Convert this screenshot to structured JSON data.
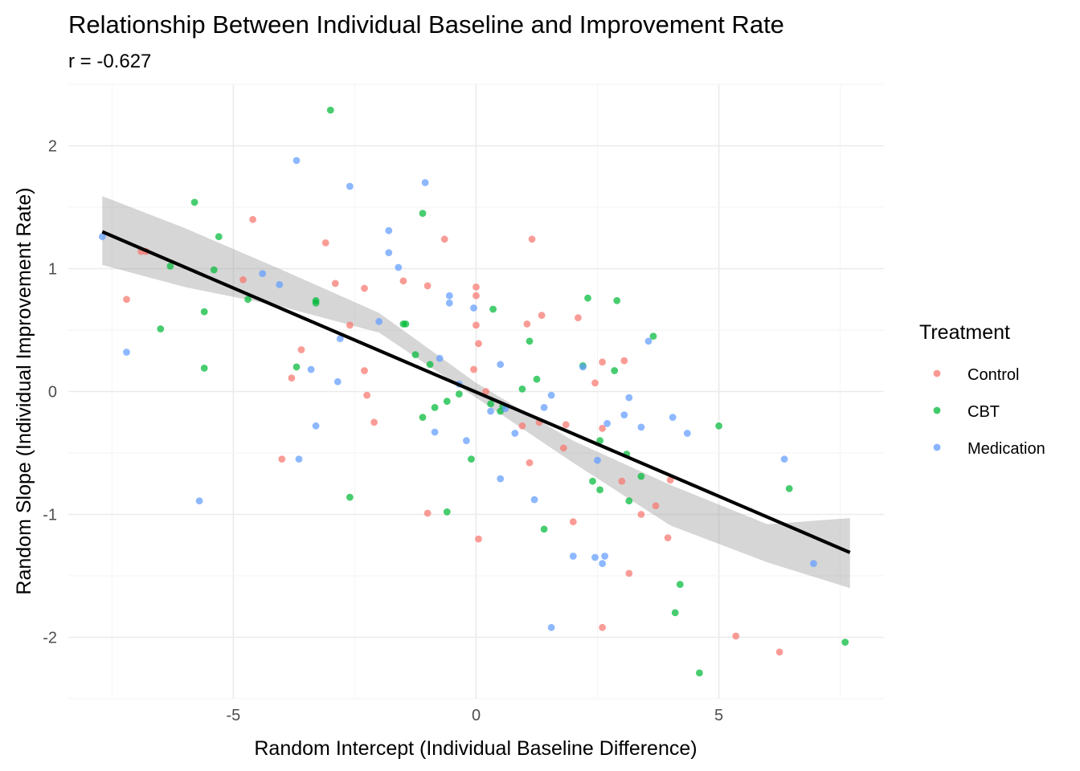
{
  "chart_data": {
    "type": "scatter",
    "title": "Relationship Between Individual Baseline and Improvement Rate",
    "subtitle": "r = -0.627",
    "xlabel": "Random Intercept (Individual Baseline Difference)",
    "ylabel": "Random Slope (Individual Improvement Rate)",
    "xlim": [
      -8.4,
      8.4
    ],
    "ylim": [
      -2.5,
      2.5
    ],
    "x_ticks": [
      -5,
      0,
      5
    ],
    "y_ticks": [
      -2,
      -1,
      0,
      1,
      2
    ],
    "x_tick_labels": [
      "-5",
      "0",
      "5"
    ],
    "y_tick_labels": [
      "-2",
      "-1",
      "0",
      "1",
      "2"
    ],
    "grid": true,
    "legend": {
      "title": "Treatment",
      "position": "right"
    },
    "series": [
      {
        "name": "Control",
        "color": "#F8766D",
        "points": [
          [
            -7.2,
            0.75
          ],
          [
            -6.9,
            1.14
          ],
          [
            -6.8,
            1.14
          ],
          [
            -4.6,
            1.4
          ],
          [
            -4.8,
            0.91
          ],
          [
            -3.1,
            1.21
          ],
          [
            -2.9,
            0.88
          ],
          [
            -3.6,
            0.34
          ],
          [
            -3.8,
            0.11
          ],
          [
            -2.6,
            0.54
          ],
          [
            -2.3,
            0.17
          ],
          [
            -2.25,
            -0.03
          ],
          [
            -2.1,
            -0.25
          ],
          [
            -2.3,
            0.84
          ],
          [
            -1.5,
            0.9
          ],
          [
            -1.0,
            0.86
          ],
          [
            -0.65,
            1.24
          ],
          [
            0.0,
            0.85
          ],
          [
            0.0,
            0.78
          ],
          [
            0.0,
            0.54
          ],
          [
            0.05,
            0.39
          ],
          [
            -0.05,
            0.18
          ],
          [
            0.2,
            0.0
          ],
          [
            1.05,
            0.55
          ],
          [
            1.35,
            0.62
          ],
          [
            1.15,
            1.24
          ],
          [
            2.1,
            0.6
          ],
          [
            2.6,
            0.24
          ],
          [
            2.45,
            0.07
          ],
          [
            3.05,
            0.25
          ],
          [
            1.3,
            -0.25
          ],
          [
            0.95,
            -0.28
          ],
          [
            1.85,
            -0.27
          ],
          [
            1.8,
            -0.46
          ],
          [
            2.6,
            -0.3
          ],
          [
            1.1,
            -0.58
          ],
          [
            3.0,
            -0.73
          ],
          [
            3.7,
            -0.93
          ],
          [
            3.4,
            -1.0
          ],
          [
            4.0,
            -0.72
          ],
          [
            -4.0,
            -0.55
          ],
          [
            -1.0,
            -0.99
          ],
          [
            0.05,
            -1.2
          ],
          [
            2.0,
            -1.06
          ],
          [
            3.15,
            -1.48
          ],
          [
            3.95,
            -1.19
          ],
          [
            2.6,
            -1.92
          ],
          [
            5.35,
            -1.99
          ],
          [
            6.25,
            -2.12
          ]
        ]
      },
      {
        "name": "CBT",
        "color": "#00BA38",
        "points": [
          [
            -3.0,
            2.29
          ],
          [
            -5.8,
            1.54
          ],
          [
            -5.3,
            1.26
          ],
          [
            -6.3,
            1.02
          ],
          [
            -5.4,
            0.99
          ],
          [
            -5.6,
            0.65
          ],
          [
            -6.5,
            0.51
          ],
          [
            -5.6,
            0.19
          ],
          [
            -4.7,
            0.75
          ],
          [
            -3.3,
            0.74
          ],
          [
            -3.3,
            0.72
          ],
          [
            -3.7,
            0.2
          ],
          [
            -1.5,
            0.55
          ],
          [
            -1.45,
            0.55
          ],
          [
            -1.25,
            0.3
          ],
          [
            -1.1,
            1.45
          ],
          [
            -0.95,
            0.22
          ],
          [
            -0.85,
            -0.13
          ],
          [
            -1.1,
            -0.21
          ],
          [
            -0.6,
            -0.08
          ],
          [
            -0.35,
            -0.02
          ],
          [
            0.35,
            0.67
          ],
          [
            0.3,
            -0.1
          ],
          [
            0.55,
            -0.12
          ],
          [
            0.95,
            0.02
          ],
          [
            1.1,
            0.41
          ],
          [
            1.25,
            0.1
          ],
          [
            0.5,
            -0.16
          ],
          [
            2.3,
            0.76
          ],
          [
            2.9,
            0.74
          ],
          [
            3.65,
            0.45
          ],
          [
            2.85,
            0.17
          ],
          [
            2.2,
            0.21
          ],
          [
            2.55,
            -0.4
          ],
          [
            3.1,
            -0.51
          ],
          [
            3.4,
            -0.69
          ],
          [
            2.4,
            -0.73
          ],
          [
            2.55,
            -0.8
          ],
          [
            3.15,
            -0.89
          ],
          [
            -2.6,
            -0.86
          ],
          [
            -0.6,
            -0.98
          ],
          [
            -0.1,
            -0.55
          ],
          [
            1.4,
            -1.12
          ],
          [
            4.2,
            -1.57
          ],
          [
            4.1,
            -1.8
          ],
          [
            4.6,
            -2.29
          ],
          [
            5.0,
            -0.28
          ],
          [
            6.45,
            -0.79
          ],
          [
            7.6,
            -2.04
          ]
        ]
      },
      {
        "name": "Medication",
        "color": "#619CFF",
        "points": [
          [
            -3.7,
            1.88
          ],
          [
            -2.6,
            1.67
          ],
          [
            -1.05,
            1.7
          ],
          [
            -1.8,
            1.31
          ],
          [
            -1.8,
            1.13
          ],
          [
            -1.6,
            1.01
          ],
          [
            -4.4,
            0.96
          ],
          [
            -4.05,
            0.87
          ],
          [
            -7.7,
            1.26
          ],
          [
            -7.2,
            0.32
          ],
          [
            -2.0,
            0.57
          ],
          [
            -2.8,
            0.43
          ],
          [
            -3.4,
            0.18
          ],
          [
            -2.85,
            0.08
          ],
          [
            -0.55,
            0.78
          ],
          [
            -0.55,
            0.72
          ],
          [
            -0.05,
            0.68
          ],
          [
            -0.75,
            0.27
          ],
          [
            -0.35,
            0.06
          ],
          [
            0.5,
            0.22
          ],
          [
            0.3,
            -0.16
          ],
          [
            0.6,
            -0.14
          ],
          [
            0.8,
            -0.34
          ],
          [
            -0.2,
            -0.4
          ],
          [
            -0.85,
            -0.33
          ],
          [
            1.4,
            -0.13
          ],
          [
            1.55,
            -0.03
          ],
          [
            2.2,
            0.2
          ],
          [
            2.7,
            -0.26
          ],
          [
            3.05,
            -0.19
          ],
          [
            3.15,
            -0.05
          ],
          [
            3.4,
            -0.29
          ],
          [
            3.55,
            0.41
          ],
          [
            4.05,
            -0.21
          ],
          [
            4.35,
            -0.34
          ],
          [
            2.5,
            -0.56
          ],
          [
            0.5,
            -0.71
          ],
          [
            1.2,
            -0.88
          ],
          [
            -3.3,
            -0.28
          ],
          [
            -3.65,
            -0.55
          ],
          [
            -5.7,
            -0.89
          ],
          [
            2.0,
            -1.34
          ],
          [
            2.45,
            -1.35
          ],
          [
            2.65,
            -1.34
          ],
          [
            2.6,
            -1.4
          ],
          [
            1.55,
            -1.92
          ],
          [
            6.35,
            -0.55
          ],
          [
            6.95,
            -1.4
          ]
        ]
      }
    ],
    "trend_line": {
      "type": "linear",
      "x_range": [
        -7.7,
        7.7
      ],
      "y_at_xmin": 1.3,
      "y_at_xmax": -1.31,
      "color": "#000000"
    },
    "confidence_band": {
      "level": "95%",
      "color": "#999999",
      "x": [
        -7.7,
        -6.0,
        -4.0,
        -2.0,
        0.0,
        2.0,
        4.0,
        6.0,
        7.7
      ],
      "upper": [
        1.59,
        1.33,
        0.99,
        0.64,
        0.07,
        -0.4,
        -0.76,
        -1.08,
        -1.03
      ],
      "lower": [
        1.03,
        0.85,
        0.69,
        0.48,
        -0.05,
        -0.58,
        -1.09,
        -1.39,
        -1.6
      ]
    }
  }
}
